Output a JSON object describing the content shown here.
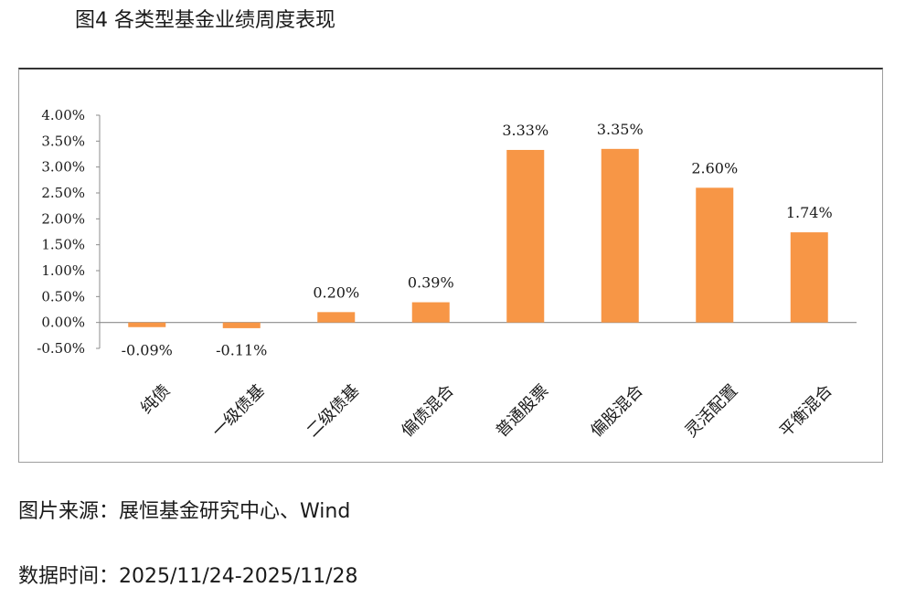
{
  "header": {
    "title": "图4 各类型基金业绩周度表现"
  },
  "footer": {
    "source": "图片来源：展恒基金研究中心、Wind",
    "date_range": "数据时间：2025/11/24-2025/11/28"
  },
  "colors": {
    "bar": "#f79646",
    "axis": "#8c8c8c",
    "frame": "#333333"
  },
  "chart_data": {
    "type": "bar",
    "categories": [
      "纯债",
      "一级债基",
      "二级债基",
      "偏债混合",
      "普通股票",
      "偏股混合",
      "灵活配置",
      "平衡混合"
    ],
    "values": [
      -0.09,
      -0.11,
      0.2,
      0.39,
      3.33,
      3.35,
      2.6,
      1.74
    ],
    "value_labels": [
      "-0.09%",
      "-0.11%",
      "0.20%",
      "0.39%",
      "3.33%",
      "3.35%",
      "2.60%",
      "1.74%"
    ],
    "yticks": [
      4.0,
      3.5,
      3.0,
      2.5,
      2.0,
      1.5,
      1.0,
      0.5,
      0.0,
      -0.5
    ],
    "ytick_labels": [
      "4.00%",
      "3.50%",
      "3.00%",
      "2.50%",
      "2.00%",
      "1.50%",
      "1.00%",
      "0.50%",
      "0.00%",
      "-0.50%"
    ],
    "ylim": [
      -0.5,
      4.0
    ],
    "grid": false,
    "legend": "none"
  }
}
